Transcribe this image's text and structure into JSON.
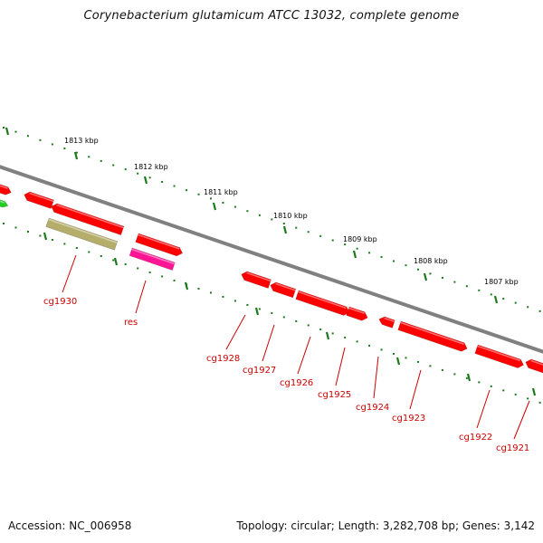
{
  "title": "Corynebacterium glutamicum ATCC 13032, complete genome",
  "footer": {
    "accession": "Accession: NC_006958",
    "summary": "Topology: circular; Length: 3,282,708 bp; Genes: 3,142"
  },
  "colors": {
    "backbone": "#808080",
    "ticks": "#1a7a1a",
    "gene": "#ff0000",
    "gene_pseudo": "#b5ad6a",
    "gene_misc": "#ff1493",
    "gene_green": "#22cc22",
    "label": "#cc0000"
  },
  "kbp_labels": [
    "1813 kbp",
    "1812 kbp",
    "1811 kbp",
    "1810 kbp",
    "1809 kbp",
    "1808 kbp",
    "1807 kbp"
  ],
  "gene_labels": [
    "cg1930",
    "res",
    "cg1928",
    "cg1927",
    "cg1926",
    "cg1925",
    "cg1924",
    "cg1923",
    "cg1922",
    "cg1921"
  ]
}
